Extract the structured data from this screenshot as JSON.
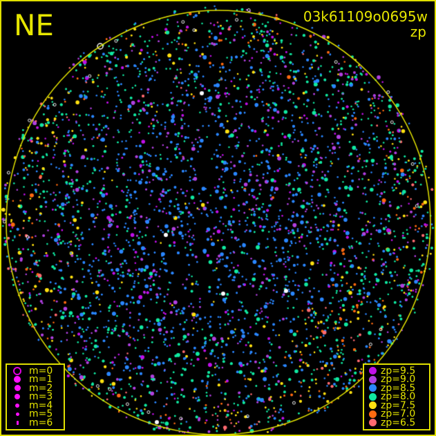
{
  "direction_label": "NE",
  "frame_id": "03k61109o0695w",
  "plot_mode": "zp",
  "colors": {
    "axis": "#e6e600",
    "background": "#000000"
  },
  "magnitude_legend": [
    {
      "label": "m=0",
      "hollow": true
    },
    {
      "label": "m=1"
    },
    {
      "label": "m=2"
    },
    {
      "label": "m=3"
    },
    {
      "label": "m=4"
    },
    {
      "label": "m=5"
    },
    {
      "label": "m=6"
    }
  ],
  "zp_legend": [
    {
      "label": "zp=9.5",
      "color": "#c010e8"
    },
    {
      "label": "zp=9.0",
      "color": "#b040e0"
    },
    {
      "label": "zp=8.5",
      "color": "#2a86ff"
    },
    {
      "label": "zp=8.0",
      "color": "#10e8a0"
    },
    {
      "label": "zp=7.5",
      "color": "#ffe010"
    },
    {
      "label": "zp=7.0",
      "color": "#ff6a10"
    },
    {
      "label": "zp=6.5",
      "color": "#ff6a70"
    }
  ]
}
